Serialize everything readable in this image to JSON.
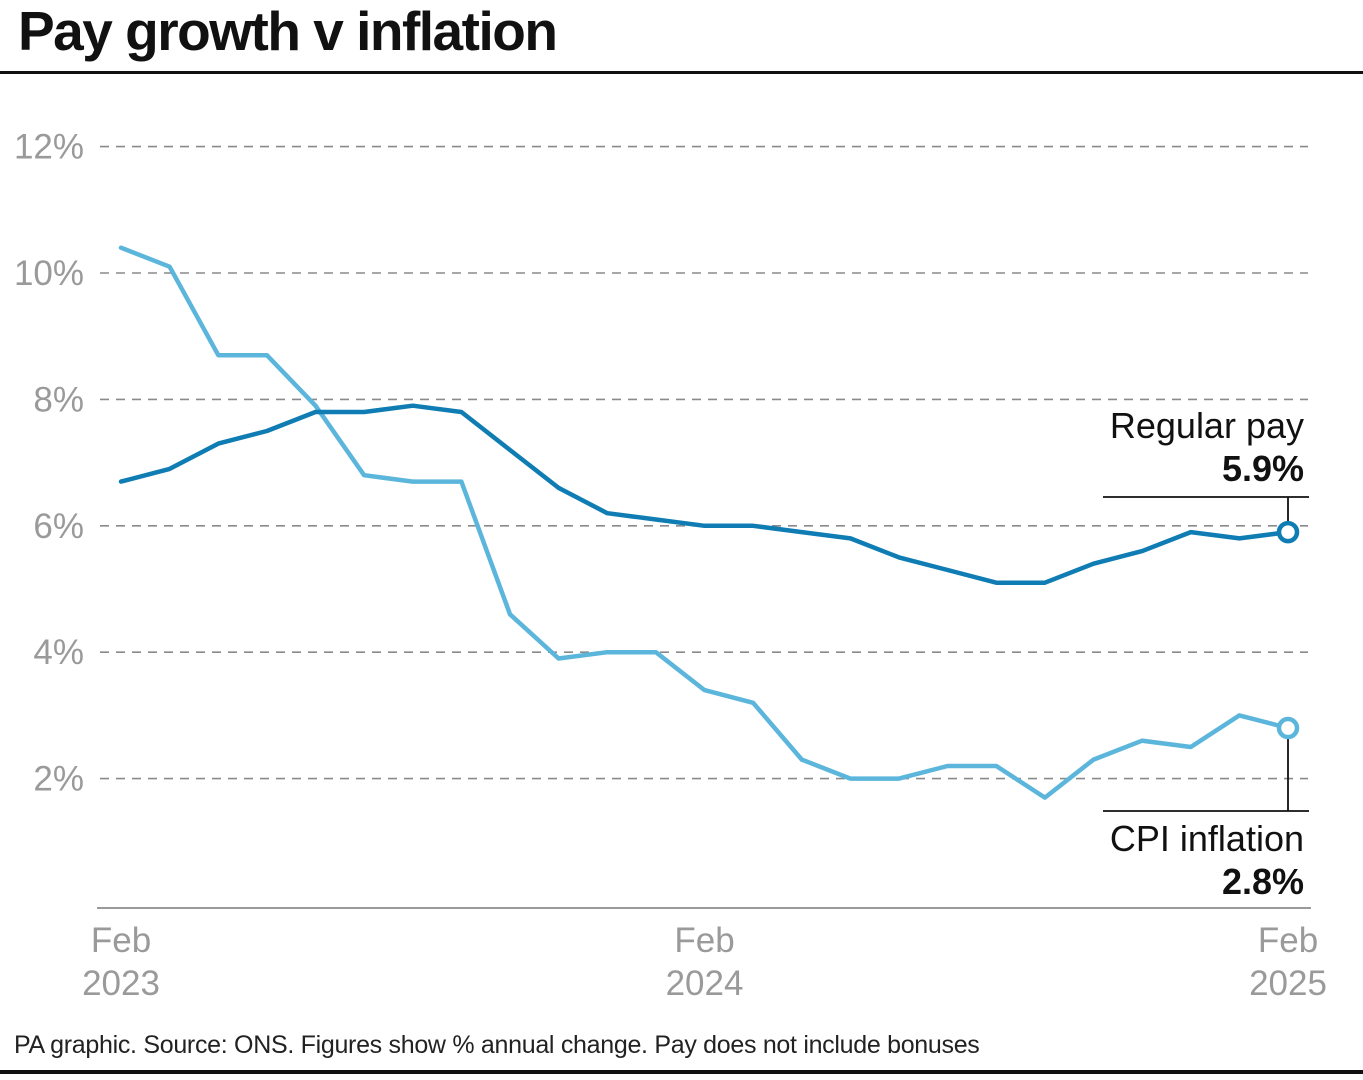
{
  "title": "Pay growth v inflation",
  "footer": "PA graphic. Source: ONS. Figures show % annual change. Pay does not include bonuses",
  "colors": {
    "regular_pay": "#0f7db3",
    "cpi_inflation": "#5cb6dc",
    "gridline": "#8a8a8a",
    "axis": "#9a9a9a",
    "text": "#111111"
  },
  "chart_data": {
    "type": "line",
    "title": "Pay growth v inflation",
    "xlabel": "",
    "ylabel": "",
    "ylim": [
      0,
      12
    ],
    "yticks": [
      2,
      4,
      6,
      8,
      10,
      12
    ],
    "ytick_labels": [
      "2%",
      "4%",
      "6%",
      "8%",
      "10%",
      "12%"
    ],
    "grid": true,
    "x": [
      "Feb 2023",
      "Mar 2023",
      "Apr 2023",
      "May 2023",
      "Jun 2023",
      "Jul 2023",
      "Aug 2023",
      "Sep 2023",
      "Oct 2023",
      "Nov 2023",
      "Dec 2023",
      "Jan 2024",
      "Feb 2024",
      "Mar 2024",
      "Apr 2024",
      "May 2024",
      "Jun 2024",
      "Jul 2024",
      "Aug 2024",
      "Sep 2024",
      "Oct 2024",
      "Nov 2024",
      "Dec 2024",
      "Jan 2025",
      "Feb 2025"
    ],
    "xticks": [
      {
        "index": 0,
        "month": "Feb",
        "year": "2023"
      },
      {
        "index": 12,
        "month": "Feb",
        "year": "2024"
      },
      {
        "index": 24,
        "month": "Feb",
        "year": "2025"
      }
    ],
    "series": [
      {
        "name": "Regular pay",
        "label": "Regular pay",
        "final_label": "5.9%",
        "color_key": "regular_pay",
        "values": [
          6.7,
          6.9,
          7.3,
          7.5,
          7.8,
          7.8,
          7.9,
          7.8,
          7.2,
          6.6,
          6.2,
          6.1,
          6.0,
          6.0,
          5.9,
          5.8,
          5.5,
          5.3,
          5.1,
          5.1,
          5.4,
          5.6,
          5.9,
          5.8,
          5.9
        ]
      },
      {
        "name": "CPI inflation",
        "label": "CPI inflation",
        "final_label": "2.8%",
        "color_key": "cpi_inflation",
        "values": [
          10.4,
          10.1,
          8.7,
          8.7,
          7.9,
          6.8,
          6.7,
          6.7,
          4.6,
          3.9,
          4.0,
          4.0,
          3.4,
          3.2,
          2.3,
          2.0,
          2.0,
          2.2,
          2.2,
          1.7,
          2.3,
          2.6,
          2.5,
          3.0,
          2.8
        ]
      }
    ]
  }
}
